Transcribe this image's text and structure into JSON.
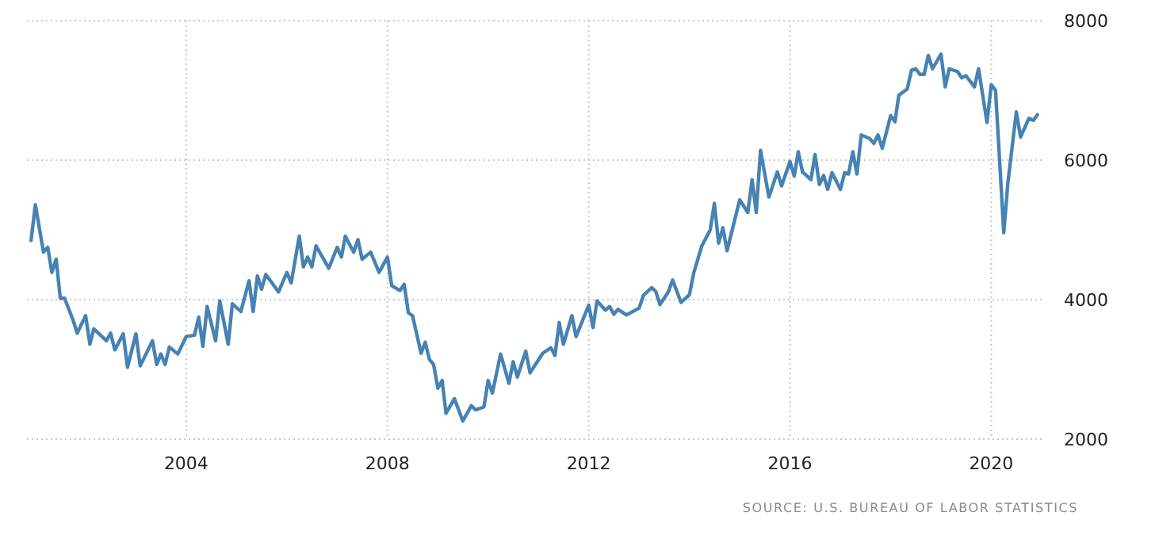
{
  "chart_data": {
    "type": "line",
    "annotations": [
      "SOURCE: U.S. BUREAU OF LABOR STATISTICS"
    ],
    "x": [
      "2000-12",
      "2001-01",
      "2001-03",
      "2001-04",
      "2001-05",
      "2001-06",
      "2001-07",
      "2001-08",
      "2001-10",
      "2001-11",
      "2002-01",
      "2002-02",
      "2002-03",
      "2002-06",
      "2002-07",
      "2002-08",
      "2002-10",
      "2002-11",
      "2003-01",
      "2003-02",
      "2003-05",
      "2003-06",
      "2003-07",
      "2003-08",
      "2003-09",
      "2003-11",
      "2004-01",
      "2004-03",
      "2004-04",
      "2004-05",
      "2004-06",
      "2004-08",
      "2004-09",
      "2004-11",
      "2004-12",
      "2005-02",
      "2005-04",
      "2005-05",
      "2005-06",
      "2005-07",
      "2005-08",
      "2005-11",
      "2006-01",
      "2006-02",
      "2006-04",
      "2006-05",
      "2006-06",
      "2006-07",
      "2006-08",
      "2006-11",
      "2007-01",
      "2007-02",
      "2007-03",
      "2007-05",
      "2007-06",
      "2007-07",
      "2007-09",
      "2007-11",
      "2008-01",
      "2008-02",
      "2008-04",
      "2008-05",
      "2008-06",
      "2008-07",
      "2008-09",
      "2008-10",
      "2008-11",
      "2008-12",
      "2009-01",
      "2009-02",
      "2009-03",
      "2009-05",
      "2009-07",
      "2009-09",
      "2009-10",
      "2009-12",
      "2010-01",
      "2010-02",
      "2010-04",
      "2010-06",
      "2010-07",
      "2010-08",
      "2010-10",
      "2010-11",
      "2011-02",
      "2011-04",
      "2011-05",
      "2011-06",
      "2011-07",
      "2011-09",
      "2011-10",
      "2012-01",
      "2012-02",
      "2012-03",
      "2012-05",
      "2012-06",
      "2012-07",
      "2012-08",
      "2012-10",
      "2013-01",
      "2013-02",
      "2013-04",
      "2013-05",
      "2013-06",
      "2013-08",
      "2013-09",
      "2013-11",
      "2014-01",
      "2014-02",
      "2014-04",
      "2014-06",
      "2014-07",
      "2014-08",
      "2014-09",
      "2014-10",
      "2015-01",
      "2015-03",
      "2015-04",
      "2015-05",
      "2015-06",
      "2015-08",
      "2015-10",
      "2015-11",
      "2016-01",
      "2016-02",
      "2016-03",
      "2016-04",
      "2016-06",
      "2016-07",
      "2016-08",
      "2016-09",
      "2016-10",
      "2016-11",
      "2017-01",
      "2017-02",
      "2017-03",
      "2017-04",
      "2017-05",
      "2017-06",
      "2017-08",
      "2017-09",
      "2017-10",
      "2017-11",
      "2018-01",
      "2018-02",
      "2018-03",
      "2018-05",
      "2018-06",
      "2018-07",
      "2018-08",
      "2018-09",
      "2018-10",
      "2018-11",
      "2019-01",
      "2019-02",
      "2019-03",
      "2019-05",
      "2019-06",
      "2019-07",
      "2019-09",
      "2019-10",
      "2019-12",
      "2020-01",
      "2020-02",
      "2020-04",
      "2020-05",
      "2020-07",
      "2020-08",
      "2020-10",
      "2020-11",
      "2020-12"
    ],
    "series": [
      {
        "color": "#4682b4",
        "values": [
          4850,
          5360,
          4680,
          4750,
          4390,
          4580,
          4020,
          4020,
          3710,
          3520,
          3770,
          3360,
          3580,
          3410,
          3520,
          3280,
          3510,
          3030,
          3510,
          3050,
          3410,
          3070,
          3220,
          3070,
          3320,
          3220,
          3470,
          3490,
          3750,
          3330,
          3900,
          3410,
          3980,
          3360,
          3940,
          3830,
          4270,
          3830,
          4340,
          4150,
          4360,
          4110,
          4390,
          4240,
          4910,
          4470,
          4610,
          4470,
          4770,
          4450,
          4750,
          4610,
          4910,
          4680,
          4860,
          4580,
          4680,
          4390,
          4610,
          4200,
          4130,
          4220,
          3810,
          3770,
          3230,
          3390,
          3140,
          3070,
          2730,
          2840,
          2370,
          2580,
          2260,
          2480,
          2420,
          2460,
          2840,
          2660,
          3220,
          2800,
          3110,
          2890,
          3260,
          2950,
          3230,
          3310,
          3200,
          3670,
          3360,
          3770,
          3470,
          3920,
          3600,
          3980,
          3850,
          3900,
          3790,
          3860,
          3780,
          3880,
          4060,
          4170,
          4120,
          3930,
          4110,
          4280,
          3960,
          4070,
          4380,
          4770,
          5000,
          5380,
          4810,
          5030,
          4700,
          5430,
          5250,
          5720,
          5250,
          6140,
          5470,
          5830,
          5630,
          5980,
          5770,
          6120,
          5830,
          5720,
          6080,
          5650,
          5780,
          5580,
          5820,
          5580,
          5820,
          5800,
          6120,
          5800,
          6360,
          6310,
          6240,
          6360,
          6170,
          6640,
          6550,
          6930,
          7020,
          7290,
          7310,
          7230,
          7230,
          7500,
          7310,
          7520,
          7050,
          7310,
          7270,
          7180,
          7210,
          7050,
          7310,
          6540,
          7080,
          7000,
          4960,
          5680,
          6690,
          6330,
          6600,
          6570,
          6650
        ]
      }
    ],
    "xlim": [
      "2000-11",
      "2021-01"
    ],
    "xticks": [
      {
        "value": "2004",
        "label": "2004"
      },
      {
        "value": "2008",
        "label": "2008"
      },
      {
        "value": "2012",
        "label": "2012"
      },
      {
        "value": "2016",
        "label": "2016"
      },
      {
        "value": "2020",
        "label": "2020"
      }
    ],
    "ylim": [
      2000,
      8000
    ],
    "yticks": [
      2000,
      4000,
      6000,
      8000
    ],
    "grid": true,
    "marker": "none",
    "line_style": "solid"
  }
}
